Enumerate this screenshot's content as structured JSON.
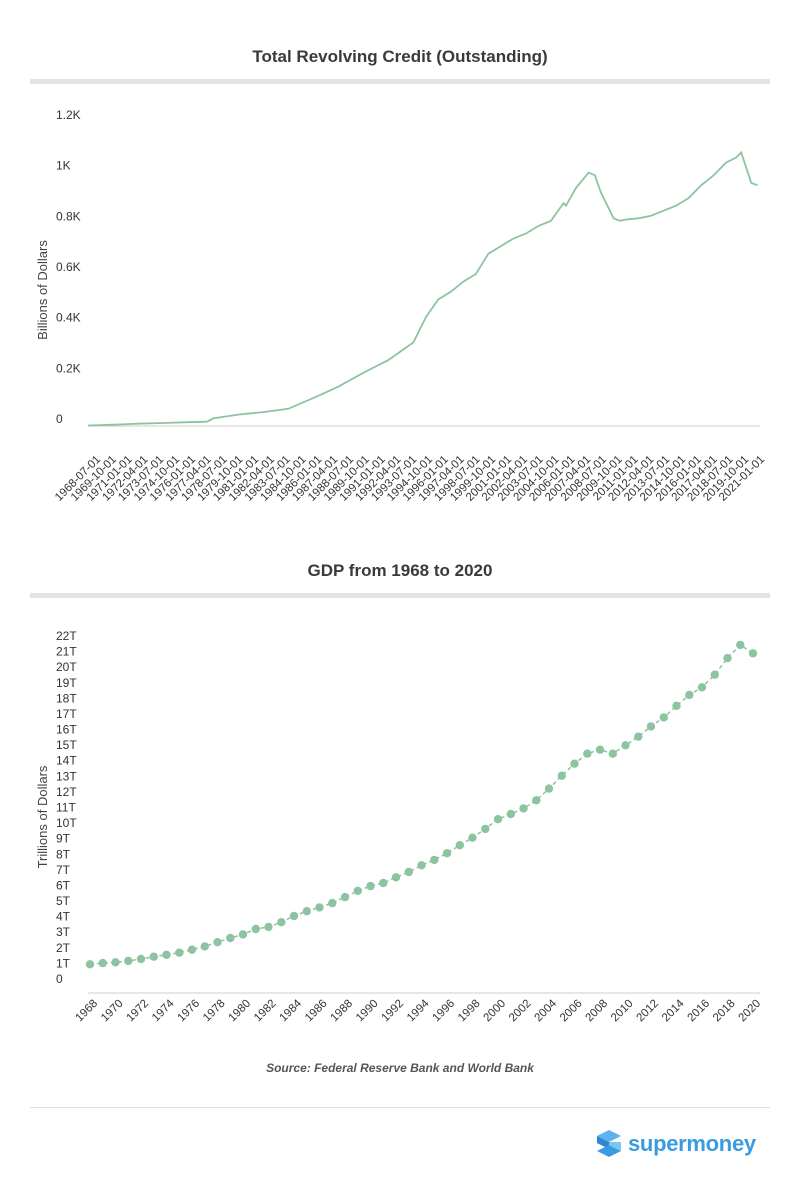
{
  "source_note": "Source: Federal Reserve Bank and World Bank",
  "brand": {
    "name": "supermoney",
    "icon": "supermoney-logo-icon",
    "color": "#3a9be0"
  },
  "colors": {
    "series": "#8cc4a0",
    "band": "#e3e3e3",
    "axis": "#cccccc"
  },
  "chart_data": [
    {
      "type": "line",
      "title": "Total Revolving Credit (Outstanding)",
      "xlabel": "",
      "ylabel": "Billions of Dollars",
      "y_ticks": [
        0,
        200,
        400,
        600,
        800,
        1000,
        1200
      ],
      "y_tick_labels": [
        "0",
        "0.2K",
        "0.4K",
        "0.6K",
        "0.8K",
        "1K",
        "1.2K"
      ],
      "ylim": [
        0,
        1200
      ],
      "x_tick_labels": [
        "1968-07-01",
        "1969-10-01",
        "1971-01-01",
        "1972-04-01",
        "1973-07-01",
        "1974-10-01",
        "1976-01-01",
        "1977-04-01",
        "1978-07-01",
        "1979-10-01",
        "1981-01-01",
        "1982-04-01",
        "1983-07-01",
        "1984-10-01",
        "1986-01-01",
        "1987-04-01",
        "1988-07-01",
        "1989-10-01",
        "1991-01-01",
        "1992-04-01",
        "1993-07-01",
        "1994-10-01",
        "1996-01-01",
        "1997-04-01",
        "1998-07-01",
        "1999-10-01",
        "2001-01-01",
        "2002-04-01",
        "2003-07-01",
        "2004-10-01",
        "2006-01-01",
        "2007-04-01",
        "2008-07-01",
        "2009-10-01",
        "2011-01-01",
        "2012-04-01",
        "2013-07-01",
        "2014-10-01",
        "2016-01-01",
        "2017-04-01",
        "2018-07-01",
        "2019-10-01",
        "2021-01-01"
      ],
      "xlim": [
        1968.0,
        2021.7
      ],
      "grid": false,
      "series": [
        {
          "x": [
            1968.0,
            1970.0,
            1972.0,
            1974.0,
            1976.0,
            1977.5,
            1978.0,
            1980.0,
            1982.0,
            1984.0,
            1986.0,
            1988.0,
            1990.0,
            1992.0,
            1994.0,
            1995.0,
            1996.0,
            1997.0,
            1998.0,
            1999.0,
            2000.0,
            2001.0,
            2002.0,
            2003.0,
            2004.0,
            2005.0,
            2006.0,
            2006.2,
            2007.0,
            2008.0,
            2008.5,
            2009.0,
            2010.0,
            2010.5,
            2011.0,
            2012.0,
            2013.0,
            2014.0,
            2015.0,
            2016.0,
            2017.0,
            2018.0,
            2019.0,
            2019.8,
            2020.2,
            2021.0,
            2021.5
          ],
          "y": [
            2,
            5,
            9,
            12,
            15,
            17,
            30,
            45,
            55,
            68,
            110,
            155,
            210,
            260,
            330,
            430,
            500,
            530,
            570,
            600,
            680,
            710,
            740,
            760,
            790,
            810,
            880,
            870,
            940,
            1000,
            990,
            920,
            820,
            810,
            815,
            820,
            830,
            850,
            870,
            900,
            950,
            990,
            1040,
            1060,
            1080,
            960,
            950
          ]
        }
      ]
    },
    {
      "type": "line",
      "title": "GDP from 1968 to 2020",
      "xlabel": "",
      "ylabel": "Trillions of Dollars",
      "y_ticks": [
        0,
        1,
        2,
        3,
        4,
        5,
        6,
        7,
        8,
        9,
        10,
        11,
        12,
        13,
        14,
        15,
        16,
        17,
        18,
        19,
        20,
        21,
        22
      ],
      "y_tick_labels": [
        "0",
        "1T",
        "2T",
        "3T",
        "4T",
        "5T",
        "6T",
        "7T",
        "8T",
        "9T",
        "10T",
        "11T",
        "12T",
        "13T",
        "14T",
        "15T",
        "16T",
        "17T",
        "18T",
        "19T",
        "20T",
        "21T",
        "22T"
      ],
      "ylim": [
        0,
        22
      ],
      "x_tick_labels": [
        "1968",
        "1970",
        "1972",
        "1974",
        "1976",
        "1978",
        "1980",
        "1982",
        "1984",
        "1986",
        "1988",
        "1990",
        "1992",
        "1994",
        "1996",
        "1998",
        "2000",
        "2002",
        "2004",
        "2006",
        "2008",
        "2010",
        "2012",
        "2014",
        "2016",
        "2018",
        "2020"
      ],
      "xlim": [
        1968,
        2020
      ],
      "grid": false,
      "markers": true,
      "series": [
        {
          "x": [
            1968,
            1969,
            1970,
            1971,
            1972,
            1973,
            1974,
            1975,
            1976,
            1977,
            1978,
            1979,
            1980,
            1981,
            1982,
            1983,
            1984,
            1985,
            1986,
            1987,
            1988,
            1989,
            1990,
            1991,
            1992,
            1993,
            1994,
            1995,
            1996,
            1997,
            1998,
            1999,
            2000,
            2001,
            2002,
            2003,
            2004,
            2005,
            2006,
            2007,
            2008,
            2009,
            2010,
            2011,
            2012,
            2013,
            2014,
            2015,
            2016,
            2017,
            2018,
            2019,
            2020
          ],
          "y": [
            0.94,
            1.02,
            1.07,
            1.16,
            1.28,
            1.43,
            1.55,
            1.69,
            1.88,
            2.09,
            2.36,
            2.63,
            2.86,
            3.21,
            3.34,
            3.64,
            4.04,
            4.35,
            4.59,
            4.87,
            5.25,
            5.66,
            5.96,
            6.16,
            6.52,
            6.86,
            7.29,
            7.64,
            8.07,
            8.58,
            9.06,
            9.63,
            10.25,
            10.58,
            10.94,
            11.46,
            12.21,
            13.04,
            13.81,
            14.45,
            14.71,
            14.45,
            14.99,
            15.54,
            16.2,
            16.78,
            17.52,
            18.22,
            18.71,
            19.52,
            20.58,
            21.43,
            20.89
          ]
        }
      ]
    }
  ]
}
